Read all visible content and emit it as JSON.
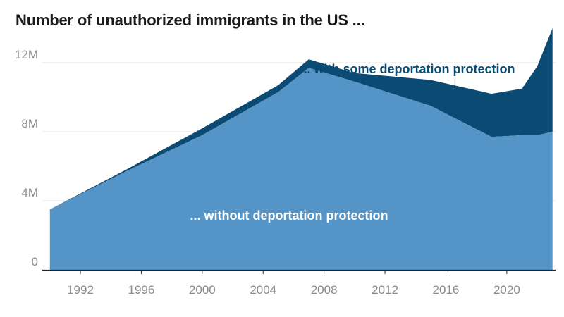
{
  "chart_data": {
    "type": "area",
    "title": "Number of unauthorized immigrants in the US ...",
    "stacked": true,
    "x": [
      1990,
      1995,
      2000,
      2005,
      2007,
      2010,
      2015,
      2019,
      2021,
      2022,
      2023
    ],
    "series": [
      {
        "name": "... without deportation protection",
        "color": "#5594c6",
        "values": [
          3.5,
          5.7,
          7.8,
          10.3,
          11.7,
          10.9,
          9.5,
          7.7,
          7.8,
          7.8,
          8.0
        ]
      },
      {
        "name": "... with some deportation protection",
        "color": "#0b4a72",
        "values": [
          0.0,
          0.1,
          0.4,
          0.4,
          0.5,
          0.5,
          1.5,
          2.5,
          2.7,
          4.0,
          6.0
        ]
      }
    ],
    "xlim": [
      1989.5,
      2023.2
    ],
    "ylim": [
      0,
      14
    ],
    "x_ticks": [
      1992,
      1996,
      2000,
      2004,
      2008,
      2012,
      2016,
      2020
    ],
    "y_ticks": [
      {
        "value": 0,
        "label": "0"
      },
      {
        "value": 4,
        "label": "4M"
      },
      {
        "value": 8,
        "label": "8M"
      },
      {
        "value": 12,
        "label": "12M"
      }
    ],
    "grid": true,
    "annotation_year": 2016.6
  }
}
